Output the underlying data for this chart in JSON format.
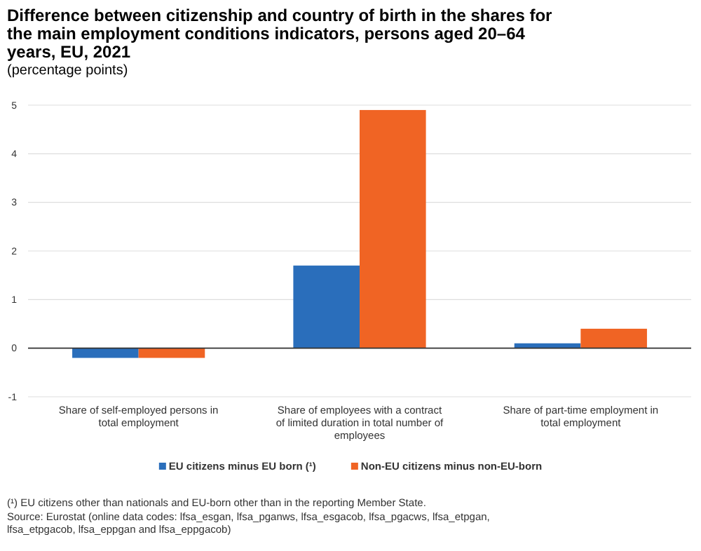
{
  "chart_data": {
    "type": "bar",
    "title": "Difference between citizenship and country of birth in the shares for the main employment conditions indicators, persons aged 20–64 years, EU, 2021",
    "subtitle": "(percentage points)",
    "categories": [
      "Share of self-employed persons in total employment",
      "Share of employees with a contract of limited duration in total number of employees",
      "Share of part-time employment in total employment"
    ],
    "series": [
      {
        "name": "EU citizens minus EU born (¹)",
        "color": "#2a6ebb",
        "values": [
          -0.2,
          1.7,
          0.1
        ]
      },
      {
        "name": "Non-EU citizens minus non-EU-born",
        "color": "#f06424",
        "values": [
          -0.2,
          4.9,
          0.4
        ]
      }
    ],
    "ylim": [
      -1,
      5
    ],
    "yticks": [
      -1,
      0,
      1,
      2,
      3,
      4,
      5
    ],
    "grid": "y",
    "legend": "bottom",
    "annotations": [
      "(¹) EU citizens other than nationals and EU-born other than in the reporting Member State.",
      "Source: Eurostat (online data codes: lfsa_esgan, lfsa_pganws, lfsa_esgacob, lfsa_pgacws, lfsa_etpgan, lfsa_etpgacob, lfsa_eppgan and lfsa_eppgacob)"
    ]
  }
}
